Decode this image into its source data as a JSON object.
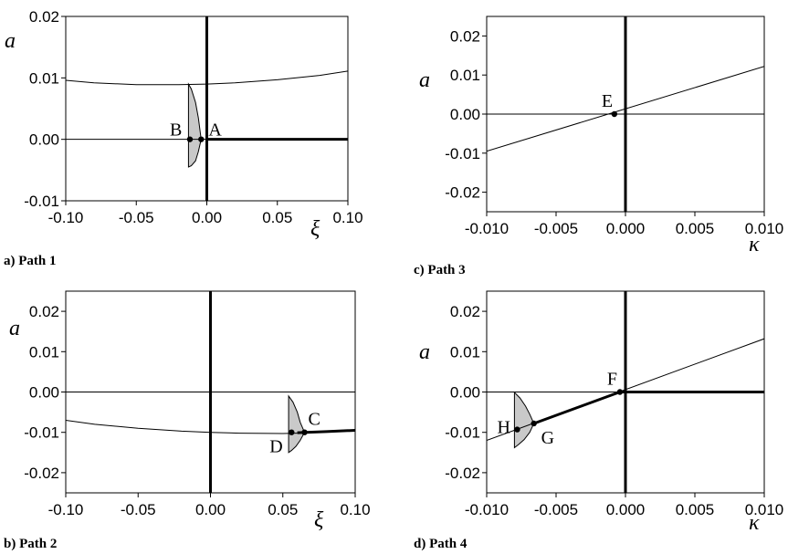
{
  "chart_data": [
    {
      "type": "line",
      "caption": "a) Path 1",
      "xlabel": "ξ",
      "ylabel": "a",
      "xlim": [
        -0.1,
        0.1
      ],
      "ylim": [
        -0.01,
        0.02
      ],
      "xticks": [
        "-0.10",
        "-0.05",
        "0.00",
        "0.05",
        "0.10"
      ],
      "yticks": [
        "0.02",
        "0.01",
        "0.00",
        "-0.01"
      ],
      "yticks_values": [
        0.02,
        0.01,
        0.0,
        -0.01
      ],
      "xticks_values": [
        -0.1,
        -0.05,
        0.0,
        0.05,
        0.1
      ],
      "series": [
        {
          "style": "thin",
          "x": [
            -0.1,
            -0.08,
            -0.05,
            -0.02,
            0.0,
            0.02,
            0.05,
            0.08,
            0.1
          ],
          "y": [
            0.0096,
            0.0092,
            0.0089,
            0.0089,
            0.009,
            0.0092,
            0.0097,
            0.0104,
            0.0111
          ]
        },
        {
          "style": "thin",
          "x": [
            -0.1,
            0.0
          ],
          "y": [
            0.0,
            0.0
          ]
        },
        {
          "style": "thick",
          "x": [
            0.0,
            0.1
          ],
          "y": [
            0.0,
            0.0
          ]
        },
        {
          "style": "thick-vertical",
          "x": [
            0.0,
            0.0
          ],
          "y": [
            -0.01,
            0.02
          ]
        }
      ],
      "region": {
        "x": [
          -0.013,
          -0.011,
          -0.008,
          -0.006,
          -0.004,
          -0.006,
          -0.008,
          -0.011,
          -0.013
        ],
        "y": [
          0.009,
          0.0082,
          0.006,
          0.0035,
          0.0,
          -0.002,
          -0.0035,
          -0.0043,
          -0.0045
        ]
      },
      "points": [
        {
          "label": "A",
          "x": -0.004,
          "y": 0.0,
          "label_dx": 8,
          "label_dy": -4
        },
        {
          "label": "B",
          "x": -0.012,
          "y": 0.0,
          "label_dx": -22,
          "label_dy": -4
        }
      ]
    },
    {
      "type": "line",
      "caption": "b) Path 2",
      "xlabel": "ξ",
      "ylabel": "a",
      "xlim": [
        -0.1,
        0.1
      ],
      "ylim": [
        -0.025,
        0.025
      ],
      "xticks": [
        "-0.10",
        "-0.05",
        "0.00",
        "0.05",
        "0.10"
      ],
      "yticks": [
        "0.02",
        "0.01",
        "0.00",
        "-0.01",
        "-0.02"
      ],
      "yticks_values": [
        0.02,
        0.01,
        0.0,
        -0.01,
        -0.02
      ],
      "xticks_values": [
        -0.1,
        -0.05,
        0.0,
        0.05,
        0.1
      ],
      "series": [
        {
          "style": "thin",
          "x": [
            -0.1,
            -0.08,
            -0.05,
            -0.02,
            0.0,
            0.02,
            0.05,
            0.06
          ],
          "y": [
            -0.007,
            -0.008,
            -0.009,
            -0.0097,
            -0.01,
            -0.0102,
            -0.0103,
            -0.0102
          ]
        },
        {
          "style": "thick",
          "x": [
            0.06,
            0.08,
            0.1
          ],
          "y": [
            -0.0101,
            -0.0098,
            -0.0095
          ]
        },
        {
          "style": "thin",
          "x": [
            -0.1,
            0.1
          ],
          "y": [
            0.0,
            0.0
          ]
        },
        {
          "style": "thick-vertical",
          "x": [
            0.0,
            0.0
          ],
          "y": [
            -0.025,
            0.025
          ]
        }
      ],
      "region": {
        "x": [
          0.054,
          0.057,
          0.06,
          0.062,
          0.065,
          0.062,
          0.059,
          0.056,
          0.054
        ],
        "y": [
          -0.001,
          -0.0025,
          -0.005,
          -0.0075,
          -0.01,
          -0.012,
          -0.0135,
          -0.0145,
          -0.015
        ]
      },
      "points": [
        {
          "label": "C",
          "x": 0.065,
          "y": -0.01,
          "label_dx": 4,
          "label_dy": -8
        },
        {
          "label": "D",
          "x": 0.056,
          "y": -0.01,
          "label_dx": -24,
          "label_dy": 22
        }
      ]
    },
    {
      "type": "line",
      "caption": "c) Path 3",
      "xlabel": "κ",
      "ylabel": "a",
      "xlim": [
        -0.01,
        0.01
      ],
      "ylim": [
        -0.025,
        0.025
      ],
      "xticks": [
        "-0.010",
        "-0.005",
        "0.000",
        "0.005",
        "0.010"
      ],
      "yticks": [
        "0.02",
        "0.01",
        "0.00",
        "-0.01",
        "-0.02"
      ],
      "yticks_values": [
        0.02,
        0.01,
        0.0,
        -0.01,
        -0.02
      ],
      "xticks_values": [
        -0.01,
        -0.005,
        0.0,
        0.005,
        0.01
      ],
      "series": [
        {
          "style": "thin",
          "x": [
            -0.01,
            0.01
          ],
          "y": [
            -0.0095,
            0.0122
          ]
        },
        {
          "style": "thin",
          "x": [
            -0.01,
            0.01
          ],
          "y": [
            0.0,
            0.0
          ]
        },
        {
          "style": "thick-vertical",
          "x": [
            0.0,
            0.0
          ],
          "y": [
            -0.025,
            0.025
          ]
        }
      ],
      "region": null,
      "points": [
        {
          "label": "E",
          "x": -0.0008,
          "y": 0.0,
          "label_dx": -14,
          "label_dy": -8
        }
      ]
    },
    {
      "type": "line",
      "caption": "d) Path 4",
      "xlabel": "κ",
      "ylabel": "a",
      "xlim": [
        -0.01,
        0.01
      ],
      "ylim": [
        -0.025,
        0.025
      ],
      "xticks": [
        "-0.010",
        "-0.005",
        "0.000",
        "0.005",
        "0.010"
      ],
      "yticks": [
        "0.02",
        "0.01",
        "0.00",
        "-0.01",
        "-0.02"
      ],
      "yticks_values": [
        0.02,
        0.01,
        0.0,
        -0.01,
        -0.02
      ],
      "xticks_values": [
        -0.01,
        -0.005,
        0.0,
        0.005,
        0.01
      ],
      "series": [
        {
          "style": "thin",
          "x": [
            -0.01,
            0.01
          ],
          "y": [
            -0.012,
            0.0132
          ]
        },
        {
          "style": "thick",
          "x": [
            -0.0066,
            -0.0004
          ],
          "y": [
            -0.0078,
            0.0
          ]
        },
        {
          "style": "thick",
          "x": [
            -0.0004,
            0.01
          ],
          "y": [
            0.0,
            0.0
          ]
        },
        {
          "style": "thin",
          "x": [
            -0.01,
            -0.0004
          ],
          "y": [
            0.0,
            0.0
          ]
        },
        {
          "style": "thick-vertical",
          "x": [
            0.0,
            0.0
          ],
          "y": [
            -0.025,
            0.025
          ]
        }
      ],
      "region": {
        "x": [
          -0.008,
          -0.0076,
          -0.0072,
          -0.0069,
          -0.0066,
          -0.0069,
          -0.0073,
          -0.0077,
          -0.008
        ],
        "y": [
          -0.0001,
          -0.0015,
          -0.0035,
          -0.0055,
          -0.0078,
          -0.01,
          -0.0118,
          -0.013,
          -0.0138
        ]
      },
      "points": [
        {
          "label": "F",
          "x": -0.0004,
          "y": 0.0,
          "label_dx": -14,
          "label_dy": -8
        },
        {
          "label": "G",
          "x": -0.0066,
          "y": -0.0078,
          "label_dx": 8,
          "label_dy": 22
        },
        {
          "label": "H",
          "x": -0.0078,
          "y": -0.0093,
          "label_dx": -22,
          "label_dy": 4
        }
      ]
    }
  ]
}
